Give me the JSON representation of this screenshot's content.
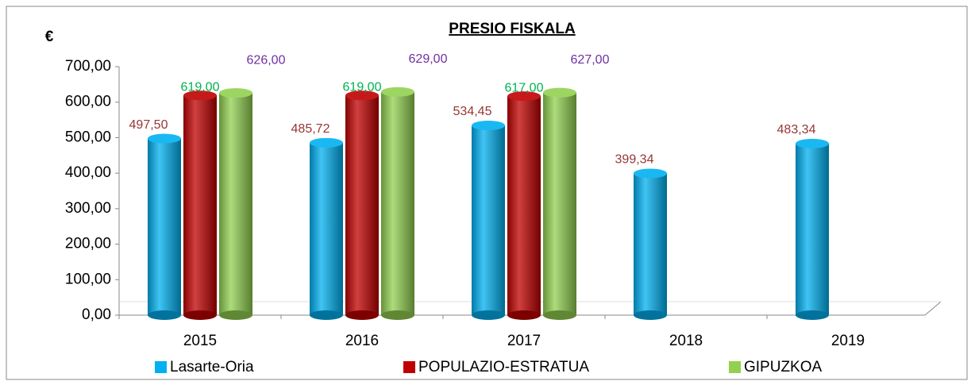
{
  "chart_data": {
    "type": "bar3d",
    "title": "PRESIO FISKALA",
    "y_label": "€",
    "categories": [
      "2015",
      "2016",
      "2017",
      "2018",
      "2019"
    ],
    "series": [
      {
        "name": "Lasarte-Oria",
        "color": "#00b0f0",
        "label_color": "#953735",
        "values": [
          497.5,
          485.72,
          534.45,
          399.34,
          483.34
        ],
        "value_labels": [
          "497,50",
          "485,72",
          "534,45",
          "399,34",
          "483,34"
        ]
      },
      {
        "name": "POPULAZIO-ESTRATUA",
        "color": "#c00000",
        "label_color": "#00b050",
        "values": [
          619,
          619,
          617,
          null,
          null
        ],
        "value_labels": [
          "619,00",
          "619,00",
          "617,00",
          null,
          null
        ]
      },
      {
        "name": "GIPUZKOA",
        "color": "#92d050",
        "label_color": "#7030a0",
        "values": [
          626,
          629,
          627,
          null,
          null
        ],
        "value_labels": [
          "626,00",
          "629,00",
          "627,00",
          null,
          null
        ]
      }
    ],
    "ylim": [
      0,
      700
    ],
    "yticks": [
      {
        "value": 0,
        "label": "0,00"
      },
      {
        "value": 100,
        "label": "100,00"
      },
      {
        "value": 200,
        "label": "200,00"
      },
      {
        "value": 300,
        "label": "300,00"
      },
      {
        "value": 400,
        "label": "400,00"
      },
      {
        "value": 500,
        "label": "500,00"
      },
      {
        "value": 600,
        "label": "600,00"
      },
      {
        "value": 700,
        "label": "700,00"
      }
    ],
    "legend": "bottom"
  }
}
